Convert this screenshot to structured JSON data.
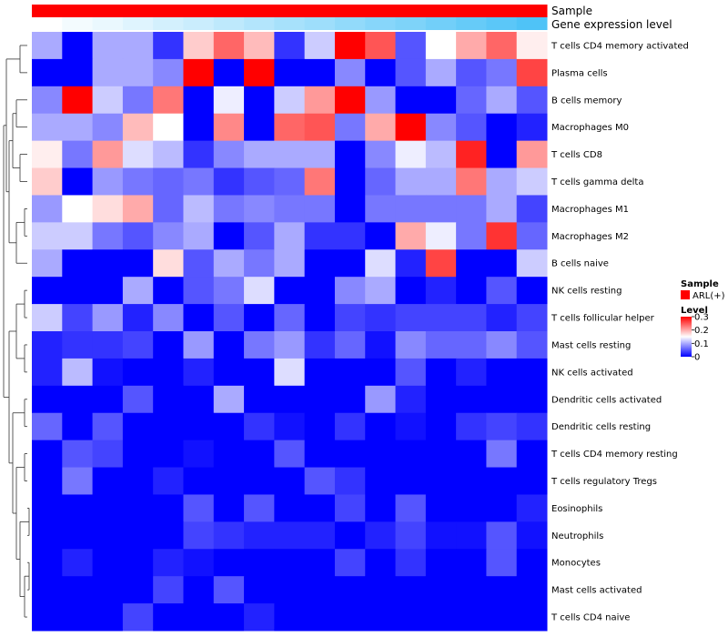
{
  "chart_data": {
    "type": "heatmap",
    "title": "",
    "annotation_tracks": [
      {
        "label": "Sample",
        "legend_title": "Sample",
        "legend_entries": [
          {
            "label": "ARL(+)",
            "color": "#ff0000"
          }
        ]
      },
      {
        "label": "Gene expression level"
      }
    ],
    "legend": {
      "title": "Level",
      "ticks": [
        {
          "label": "0.3",
          "value": 0.3
        },
        {
          "label": "0.2",
          "value": 0.2
        },
        {
          "label": "0.1",
          "value": 0.1
        },
        {
          "label": "0",
          "value": 0
        }
      ],
      "range": [
        0,
        0.3
      ]
    },
    "columns": 17,
    "rows": [
      "T cells CD4 memory activated",
      "Plasma cells",
      "B cells memory",
      "Macrophages M0",
      "T cells CD8",
      "T cells gamma delta",
      "Macrophages M1",
      "Macrophages M2",
      "B cells naive",
      "NK cells resting",
      "T cells follicular helper",
      "Mast cells resting",
      "NK cells activated",
      "Dendritic cells activated",
      "Dendritic cells resting",
      "T cells CD4 memory resting",
      "T cells regulatory  Tregs",
      "Eosinophils",
      "Neutrophils",
      "Monocytes",
      "Mast cells activated",
      "T cells CD4 naive"
    ],
    "values": [
      [
        0.1,
        0.0,
        0.1,
        0.1,
        0.03,
        0.18,
        0.24,
        0.19,
        0.03,
        0.12,
        0.3,
        0.25,
        0.05,
        0.15,
        0.2,
        0.24,
        0.16
      ],
      [
        0.0,
        0.0,
        0.1,
        0.1,
        0.08,
        0.3,
        0.0,
        0.3,
        0.0,
        0.0,
        0.08,
        0.0,
        0.05,
        0.1,
        0.05,
        0.07,
        0.26
      ],
      [
        0.08,
        0.3,
        0.12,
        0.07,
        0.23,
        0.0,
        0.14,
        0.0,
        0.12,
        0.21,
        0.3,
        0.09,
        0.0,
        0.0,
        0.06,
        0.1,
        0.05
      ],
      [
        0.1,
        0.1,
        0.08,
        0.19,
        0.15,
        0.0,
        0.22,
        0.0,
        0.24,
        0.25,
        0.07,
        0.2,
        0.3,
        0.08,
        0.05,
        0.0,
        0.02
      ],
      [
        0.16,
        0.07,
        0.21,
        0.13,
        0.11,
        0.03,
        0.08,
        0.1,
        0.1,
        0.1,
        0.0,
        0.08,
        0.14,
        0.11,
        0.28,
        0.0,
        0.21
      ],
      [
        0.18,
        0.0,
        0.09,
        0.07,
        0.06,
        0.07,
        0.03,
        0.05,
        0.06,
        0.23,
        0.0,
        0.06,
        0.1,
        0.1,
        0.23,
        0.1,
        0.12
      ],
      [
        0.09,
        0.15,
        0.17,
        0.2,
        0.06,
        0.11,
        0.07,
        0.08,
        0.07,
        0.07,
        0.0,
        0.07,
        0.07,
        0.07,
        0.07,
        0.1,
        0.04
      ],
      [
        0.12,
        0.12,
        0.07,
        0.05,
        0.08,
        0.1,
        0.0,
        0.05,
        0.1,
        0.03,
        0.03,
        0.0,
        0.2,
        0.14,
        0.07,
        0.27,
        0.06
      ],
      [
        0.1,
        0.0,
        0.0,
        0.0,
        0.17,
        0.05,
        0.1,
        0.07,
        0.1,
        0.0,
        0.0,
        0.13,
        0.02,
        0.26,
        0.0,
        0.0,
        0.12
      ],
      [
        0.0,
        0.0,
        0.0,
        0.1,
        0.0,
        0.05,
        0.07,
        0.13,
        0.0,
        0.0,
        0.08,
        0.1,
        0.0,
        0.02,
        0.0,
        0.05,
        0.0
      ],
      [
        0.12,
        0.04,
        0.09,
        0.02,
        0.08,
        0.0,
        0.05,
        0.0,
        0.06,
        0.0,
        0.04,
        0.03,
        0.04,
        0.04,
        0.04,
        0.02,
        0.04
      ],
      [
        0.02,
        0.03,
        0.03,
        0.04,
        0.0,
        0.09,
        0.0,
        0.07,
        0.09,
        0.03,
        0.06,
        0.01,
        0.08,
        0.06,
        0.06,
        0.08,
        0.05
      ],
      [
        0.02,
        0.11,
        0.01,
        0.0,
        0.0,
        0.02,
        0.0,
        0.0,
        0.13,
        0.0,
        0.0,
        0.0,
        0.05,
        0.0,
        0.02,
        0.0,
        0.0
      ],
      [
        0.0,
        0.0,
        0.0,
        0.05,
        0.0,
        0.0,
        0.1,
        0.0,
        0.0,
        0.0,
        0.0,
        0.09,
        0.02,
        0.0,
        0.0,
        0.0,
        0.0
      ],
      [
        0.06,
        0.0,
        0.05,
        0.0,
        0.0,
        0.0,
        0.0,
        0.03,
        0.01,
        0.0,
        0.03,
        0.0,
        0.01,
        0.0,
        0.03,
        0.04,
        0.03
      ],
      [
        0.0,
        0.05,
        0.04,
        0.0,
        0.0,
        0.01,
        0.0,
        0.0,
        0.05,
        0.0,
        0.0,
        0.0,
        0.0,
        0.0,
        0.0,
        0.07,
        0.0
      ],
      [
        0.0,
        0.07,
        0.0,
        0.0,
        0.02,
        0.0,
        0.0,
        0.0,
        0.0,
        0.05,
        0.03,
        0.0,
        0.0,
        0.0,
        0.0,
        0.0,
        0.0
      ],
      [
        0.0,
        0.0,
        0.0,
        0.0,
        0.0,
        0.05,
        0.0,
        0.05,
        0.0,
        0.0,
        0.04,
        0.0,
        0.05,
        0.0,
        0.0,
        0.0,
        0.02
      ],
      [
        0.0,
        0.0,
        0.0,
        0.0,
        0.0,
        0.04,
        0.03,
        0.02,
        0.02,
        0.02,
        0.0,
        0.02,
        0.04,
        0.01,
        0.01,
        0.05,
        0.01
      ],
      [
        0.0,
        0.02,
        0.0,
        0.0,
        0.02,
        0.01,
        0.0,
        0.0,
        0.0,
        0.0,
        0.04,
        0.0,
        0.03,
        0.0,
        0.0,
        0.05,
        0.0
      ],
      [
        0.0,
        0.0,
        0.0,
        0.0,
        0.04,
        0.0,
        0.05,
        0.0,
        0.0,
        0.0,
        0.0,
        0.0,
        0.0,
        0.0,
        0.0,
        0.0,
        0.0
      ],
      [
        0.0,
        0.0,
        0.0,
        0.04,
        0.0,
        0.0,
        0.0,
        0.02,
        0.0,
        0.0,
        0.0,
        0.0,
        0.0,
        0.0,
        0.0,
        0.0,
        0.0
      ]
    ],
    "gene_expression_level": [
      0.0,
      0.04,
      0.07,
      0.11,
      0.15,
      0.18,
      0.22,
      0.26,
      0.3,
      0.33,
      0.37,
      0.41,
      0.44,
      0.48,
      0.52,
      0.56,
      0.6
    ],
    "colors": {
      "low": "#0000ff",
      "mid": "#ffffff",
      "high": "#ff0000",
      "sample_track": "#ff0000",
      "gene_track_low": "#ffffff",
      "gene_track_high": "#4fc3f7",
      "dendrogram": "#333333"
    },
    "dendrogram": {
      "order": [
        0,
        1,
        2,
        3,
        4,
        5,
        6,
        7,
        8,
        9,
        10,
        11,
        12,
        13,
        14,
        15,
        16,
        17,
        18,
        19,
        20,
        21
      ]
    }
  }
}
